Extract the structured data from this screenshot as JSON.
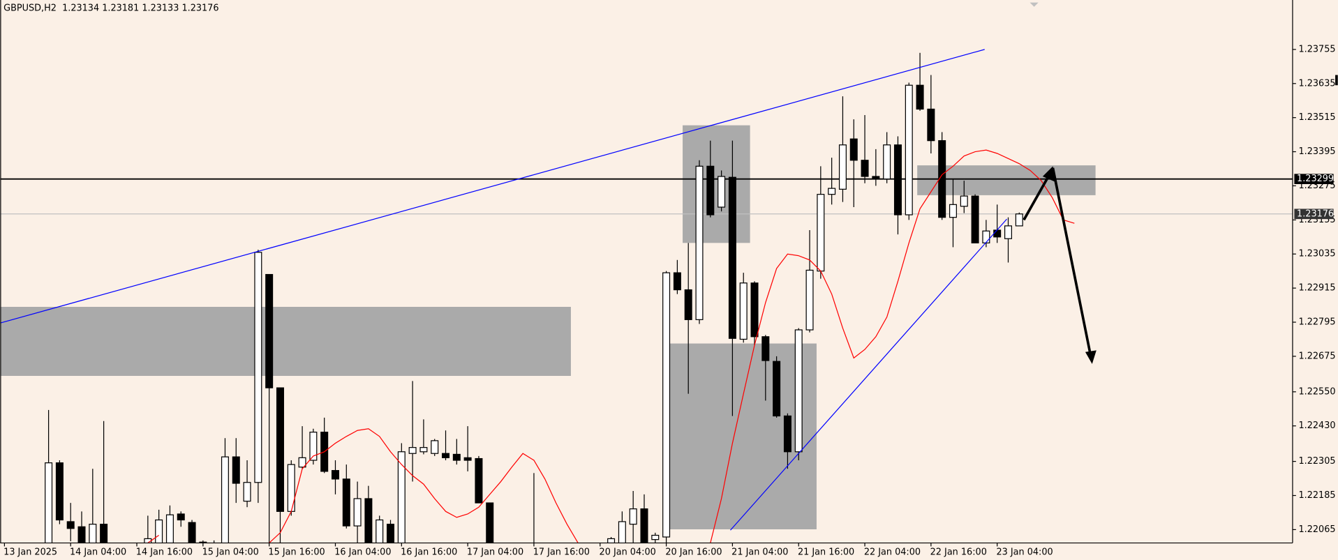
{
  "chart_data": {
    "type": "candlestick",
    "title": "GBPUSD,H2  1.23134 1.23181 1.23133 1.23176",
    "categories": [
      "13 Jan 2025",
      null,
      null,
      null,
      null,
      null,
      "14 Jan 04:00",
      null,
      null,
      null,
      null,
      null,
      "14 Jan 16:00",
      null,
      null,
      null,
      null,
      null,
      "15 Jan 04:00",
      null,
      null,
      null,
      null,
      null,
      "15 Jan 16:00",
      null,
      null,
      null,
      null,
      null,
      "16 Jan 04:00",
      null,
      null,
      null,
      null,
      null,
      "16 Jan 16:00",
      null,
      null,
      null,
      null,
      null,
      "17 Jan 04:00",
      null,
      null,
      null,
      null,
      null,
      "17 Jan 16:00",
      null,
      null,
      null,
      null,
      null,
      "20 Jan 04:00",
      null,
      null,
      null,
      null,
      null,
      "20 Jan 16:00",
      null,
      null,
      null,
      null,
      null,
      "21 Jan 04:00",
      null,
      null,
      null,
      null,
      null,
      "21 Jan 16:00",
      null,
      null,
      null,
      null,
      null,
      "22 Jan 04:00",
      null,
      null,
      null,
      null,
      null,
      "22 Jan 16:00",
      null,
      null,
      null,
      null,
      null,
      "23 Jan 04:00",
      null,
      null,
      null,
      null,
      null,
      null,
      null
    ],
    "open": [
      null,
      null,
      null,
      null,
      1.21979,
      1.223,
      1.22093,
      1.22075,
      1.22009,
      1.22084,
      null,
      null,
      null,
      1.22009,
      1.22009,
      1.22018,
      1.2212,
      1.2209,
      1.22021,
      1.22015,
      1.21994,
      1.22321,
      1.22165,
      1.22231,
      1.22963,
      1.22564,
      1.22129,
      1.22285,
      1.22309,
      1.22408,
      1.22273,
      1.22243,
      1.22078,
      1.22174,
      1.22009,
      1.22084,
      1.22009,
      1.22333,
      1.22339,
      1.22333,
      1.22333,
      1.2233,
      1.22318,
      1.22315,
      1.22159,
      null,
      null,
      null,
      1.22009,
      null,
      null,
      null,
      null,
      null,
      null,
      1.22018,
      1.22009,
      1.22084,
      1.22138,
      1.2203,
      1.22039,
      1.22969,
      1.22909,
      1.22804,
      1.23344,
      1.232,
      1.23305,
      1.22735,
      1.22933,
      1.22744,
      1.22657,
      1.22465,
      1.22339,
      1.22768,
      1.22975,
      1.23245,
      1.23263,
      1.2344,
      1.23365,
      1.23308,
      1.23299,
      1.23419,
      1.23173,
      1.23629,
      1.23545,
      1.23434,
      1.23164,
      1.23203,
      1.23239,
      1.23074,
      1.23119,
      1.23089,
      1.23134,
      null,
      null,
      null,
      null,
      null
    ],
    "high": [
      null,
      null,
      null,
      null,
      1.22486,
      1.22309,
      1.22159,
      1.22129,
      1.22279,
      1.22447,
      null,
      null,
      null,
      1.22114,
      1.22135,
      1.2215,
      1.22129,
      1.22099,
      1.22027,
      1.22027,
      1.22387,
      1.22387,
      1.22309,
      1.2305,
      1.22963,
      1.22564,
      1.22309,
      1.22429,
      1.2242,
      1.22459,
      1.22309,
      1.22294,
      1.22234,
      1.22219,
      1.22114,
      1.22099,
      1.22369,
      1.22588,
      1.22453,
      1.22384,
      1.22414,
      1.22384,
      1.22429,
      1.22324,
      1.22159,
      null,
      null,
      null,
      1.22264,
      null,
      null,
      null,
      null,
      null,
      null,
      1.22039,
      1.22129,
      1.22201,
      1.22189,
      1.22054,
      1.22975,
      1.23014,
      1.23074,
      1.23365,
      1.23434,
      1.23329,
      1.23434,
      1.22969,
      1.22939,
      1.2275,
      1.22675,
      1.22474,
      1.22774,
      1.23119,
      1.23344,
      1.23374,
      1.2359,
      1.23509,
      1.23524,
      1.23404,
      1.23464,
      1.23449,
      1.23638,
      1.23743,
      1.23665,
      1.23464,
      1.23299,
      1.23293,
      1.23245,
      1.23155,
      1.23209,
      1.23164,
      1.23181,
      null,
      null,
      null,
      null,
      null
    ],
    "low": [
      null,
      null,
      null,
      null,
      1.21949,
      1.22084,
      1.22024,
      1.21979,
      1.21994,
      1.21979,
      null,
      null,
      null,
      1.21979,
      1.21994,
      1.21994,
      1.22075,
      1.21979,
      1.21994,
      1.21979,
      1.21979,
      1.22159,
      1.22144,
      1.22159,
      1.22009,
      1.21994,
      1.22114,
      1.22279,
      1.22294,
      1.22264,
      1.22189,
      1.22069,
      1.22009,
      1.21979,
      1.21994,
      1.21979,
      1.21994,
      1.22234,
      1.2233,
      1.22324,
      1.22309,
      1.22294,
      1.2227,
      1.22159,
      1.21979,
      null,
      null,
      null,
      1.21979,
      null,
      null,
      null,
      null,
      null,
      null,
      1.21994,
      1.21994,
      1.22018,
      1.21979,
      1.22009,
      1.22018,
      1.22894,
      1.22543,
      1.22789,
      1.23164,
      1.23185,
      1.22465,
      1.22723,
      1.22714,
      1.22519,
      1.22459,
      1.22279,
      1.22309,
      1.22759,
      1.22948,
      1.23209,
      1.23218,
      1.232,
      1.23284,
      1.23275,
      1.23284,
      1.23104,
      1.23155,
      1.23539,
      1.23389,
      1.23155,
      1.23059,
      1.23179,
      1.23074,
      1.23059,
      1.23074,
      1.23005,
      1.23133,
      null,
      null,
      null,
      null,
      null
    ],
    "close": [
      null,
      null,
      null,
      null,
      1.223,
      1.22099,
      1.22069,
      1.22018,
      1.22084,
      1.22009,
      null,
      null,
      null,
      1.22033,
      1.22099,
      1.22117,
      1.22099,
      1.22009,
      1.22015,
      1.22009,
      1.22321,
      1.22228,
      1.22231,
      1.23041,
      1.22564,
      1.22129,
      1.22294,
      1.22318,
      1.22408,
      1.2227,
      1.22243,
      1.22078,
      1.22174,
      1.22009,
      1.22099,
      1.22009,
      1.22339,
      1.22354,
      1.22354,
      1.22378,
      1.22318,
      1.22309,
      1.22309,
      1.22159,
      1.22009,
      null,
      null,
      null,
      1.21994,
      null,
      null,
      null,
      null,
      null,
      null,
      1.22033,
      1.22093,
      1.22138,
      1.22009,
      1.22045,
      1.22969,
      1.22909,
      1.22804,
      1.23344,
      1.23173,
      1.23308,
      1.22738,
      1.22933,
      1.22744,
      1.2266,
      1.22465,
      1.22339,
      1.22768,
      1.22978,
      1.23245,
      1.23266,
      1.23419,
      1.23365,
      1.23308,
      1.23299,
      1.23419,
      1.23173,
      1.23629,
      1.23545,
      1.23434,
      1.23164,
      1.23209,
      1.23239,
      1.23074,
      1.23116,
      1.23095,
      1.23134,
      1.23176,
      null,
      null,
      null,
      null,
      null
    ],
    "up_color": "#ffffff",
    "down_color": "#000000",
    "ma": {
      "color": "#ff0000",
      "values": [
        null,
        null,
        null,
        null,
        null,
        null,
        null,
        null,
        null,
        null,
        null,
        null,
        null,
        1.22018,
        1.22045,
        null,
        null,
        null,
        null,
        null,
        null,
        null,
        null,
        null,
        1.22018,
        1.22054,
        1.22129,
        1.22279,
        1.22324,
        1.22339,
        1.22369,
        1.22393,
        1.22414,
        1.2242,
        1.22393,
        1.22339,
        1.22294,
        1.22255,
        1.22225,
        1.22174,
        1.22129,
        1.22108,
        1.2212,
        1.22144,
        1.22189,
        1.22234,
        1.22285,
        1.22333,
        1.22309,
        1.22243,
        1.22159,
        1.22084,
        1.22018,
        null,
        null,
        null,
        null,
        null,
        null,
        null,
        null,
        null,
        null,
        null,
        1.22018,
        1.22174,
        1.22369,
        1.22543,
        1.22714,
        1.22864,
        1.22984,
        1.23035,
        1.23029,
        1.23014,
        1.22975,
        1.22894,
        1.22774,
        1.22669,
        1.22699,
        1.22744,
        1.22813,
        1.22939,
        1.23074,
        1.23194,
        1.23254,
        1.23314,
        1.23344,
        1.2338,
        1.23395,
        1.23401,
        1.23389,
        1.23371,
        1.23353,
        1.23329,
        1.23293,
        1.23233,
        1.23155,
        1.23143
      ]
    },
    "hlines": [
      {
        "value": 1.23299,
        "color": "#000000"
      },
      {
        "value": 1.23176,
        "color": "#c0c0c0"
      }
    ],
    "ylim": [
      1.22018,
      1.23929
    ],
    "yticks": [
      1.23755,
      1.23635,
      1.23515,
      1.23395,
      1.23275,
      1.23155,
      1.23035,
      1.22915,
      1.22795,
      1.22675,
      {
        "value": 1.2255,
        "label": "1.22550"
      },
      {
        "value": 1.2243,
        "label": "1.22430"
      },
      1.22305,
      1.22185,
      1.22065
    ]
  }
}
